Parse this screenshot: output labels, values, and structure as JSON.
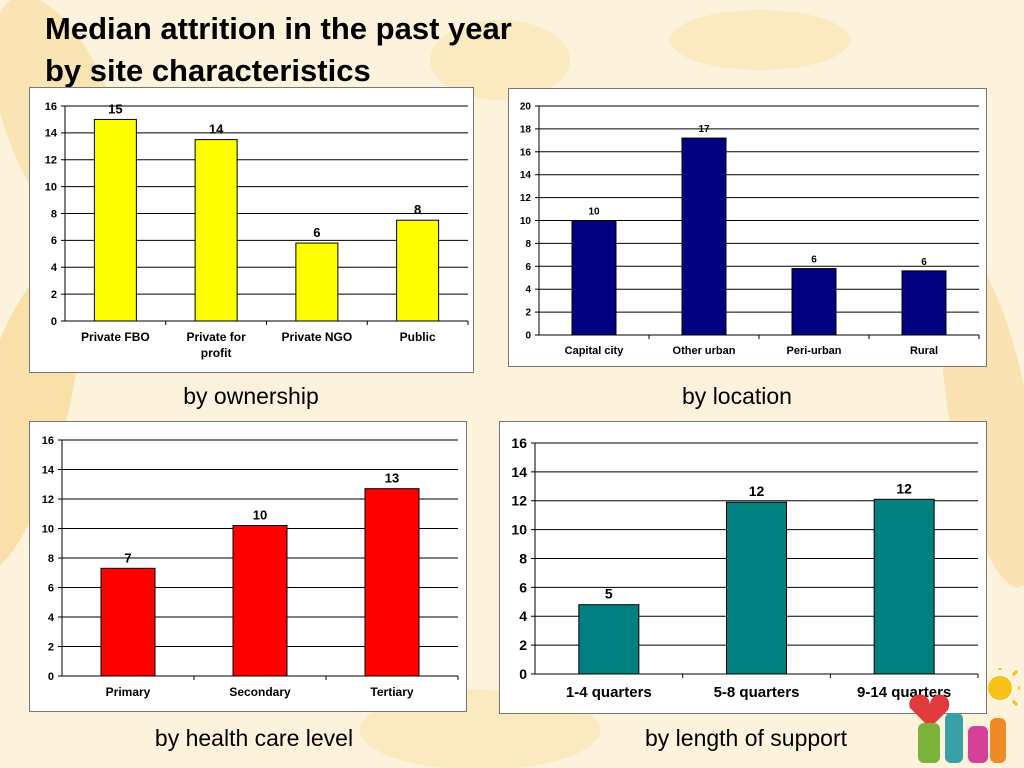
{
  "slide": {
    "title_line1": "Median attrition in the past year",
    "title_line2": "by site characteristics"
  },
  "colors": {
    "background": "#fdf3dc",
    "ownership_bar": "#ffff00",
    "location_bar": "#000080",
    "health_care_bar": "#ff0000",
    "length_bar": "#008080"
  },
  "chart_data": [
    {
      "type": "bar",
      "caption": "by ownership",
      "categories": [
        "Private FBO",
        "Private for profit",
        "Private NGO",
        "Public"
      ],
      "values": [
        15,
        13.5,
        5.8,
        7.5
      ],
      "data_labels": [
        "15",
        "14",
        "6",
        "8"
      ],
      "ylim": [
        0,
        16
      ],
      "yticks": [
        0,
        2,
        4,
        6,
        8,
        10,
        12,
        14,
        16
      ],
      "grid": true,
      "color": "#ffff00"
    },
    {
      "type": "bar",
      "caption": "by location",
      "categories": [
        "Capital city",
        "Other urban",
        "Peri-urban",
        "Rural"
      ],
      "values": [
        10,
        17.2,
        5.8,
        5.6
      ],
      "data_labels": [
        "10",
        "17",
        "6",
        "6"
      ],
      "ylim": [
        0,
        20
      ],
      "yticks": [
        0,
        2,
        4,
        6,
        8,
        10,
        12,
        14,
        16,
        18,
        20
      ],
      "grid": true,
      "color": "#000080"
    },
    {
      "type": "bar",
      "caption": "by health care level",
      "categories": [
        "Primary",
        "Secondary",
        "Tertiary"
      ],
      "values": [
        7.3,
        10.2,
        12.7
      ],
      "data_labels": [
        "7",
        "10",
        "13"
      ],
      "ylim": [
        0,
        16
      ],
      "yticks": [
        0,
        2,
        4,
        6,
        8,
        10,
        12,
        14,
        16
      ],
      "grid": true,
      "color": "#ff0000"
    },
    {
      "type": "bar",
      "caption": "by length of support",
      "categories": [
        "1-4 quarters",
        "5-8 quarters",
        "9-14 quarters"
      ],
      "values": [
        4.8,
        11.9,
        12.1
      ],
      "data_labels": [
        "5",
        "12",
        "12"
      ],
      "ylim": [
        0,
        16
      ],
      "yticks": [
        0,
        2,
        4,
        6,
        8,
        10,
        12,
        14,
        16
      ],
      "grid": true,
      "color": "#008080"
    }
  ]
}
